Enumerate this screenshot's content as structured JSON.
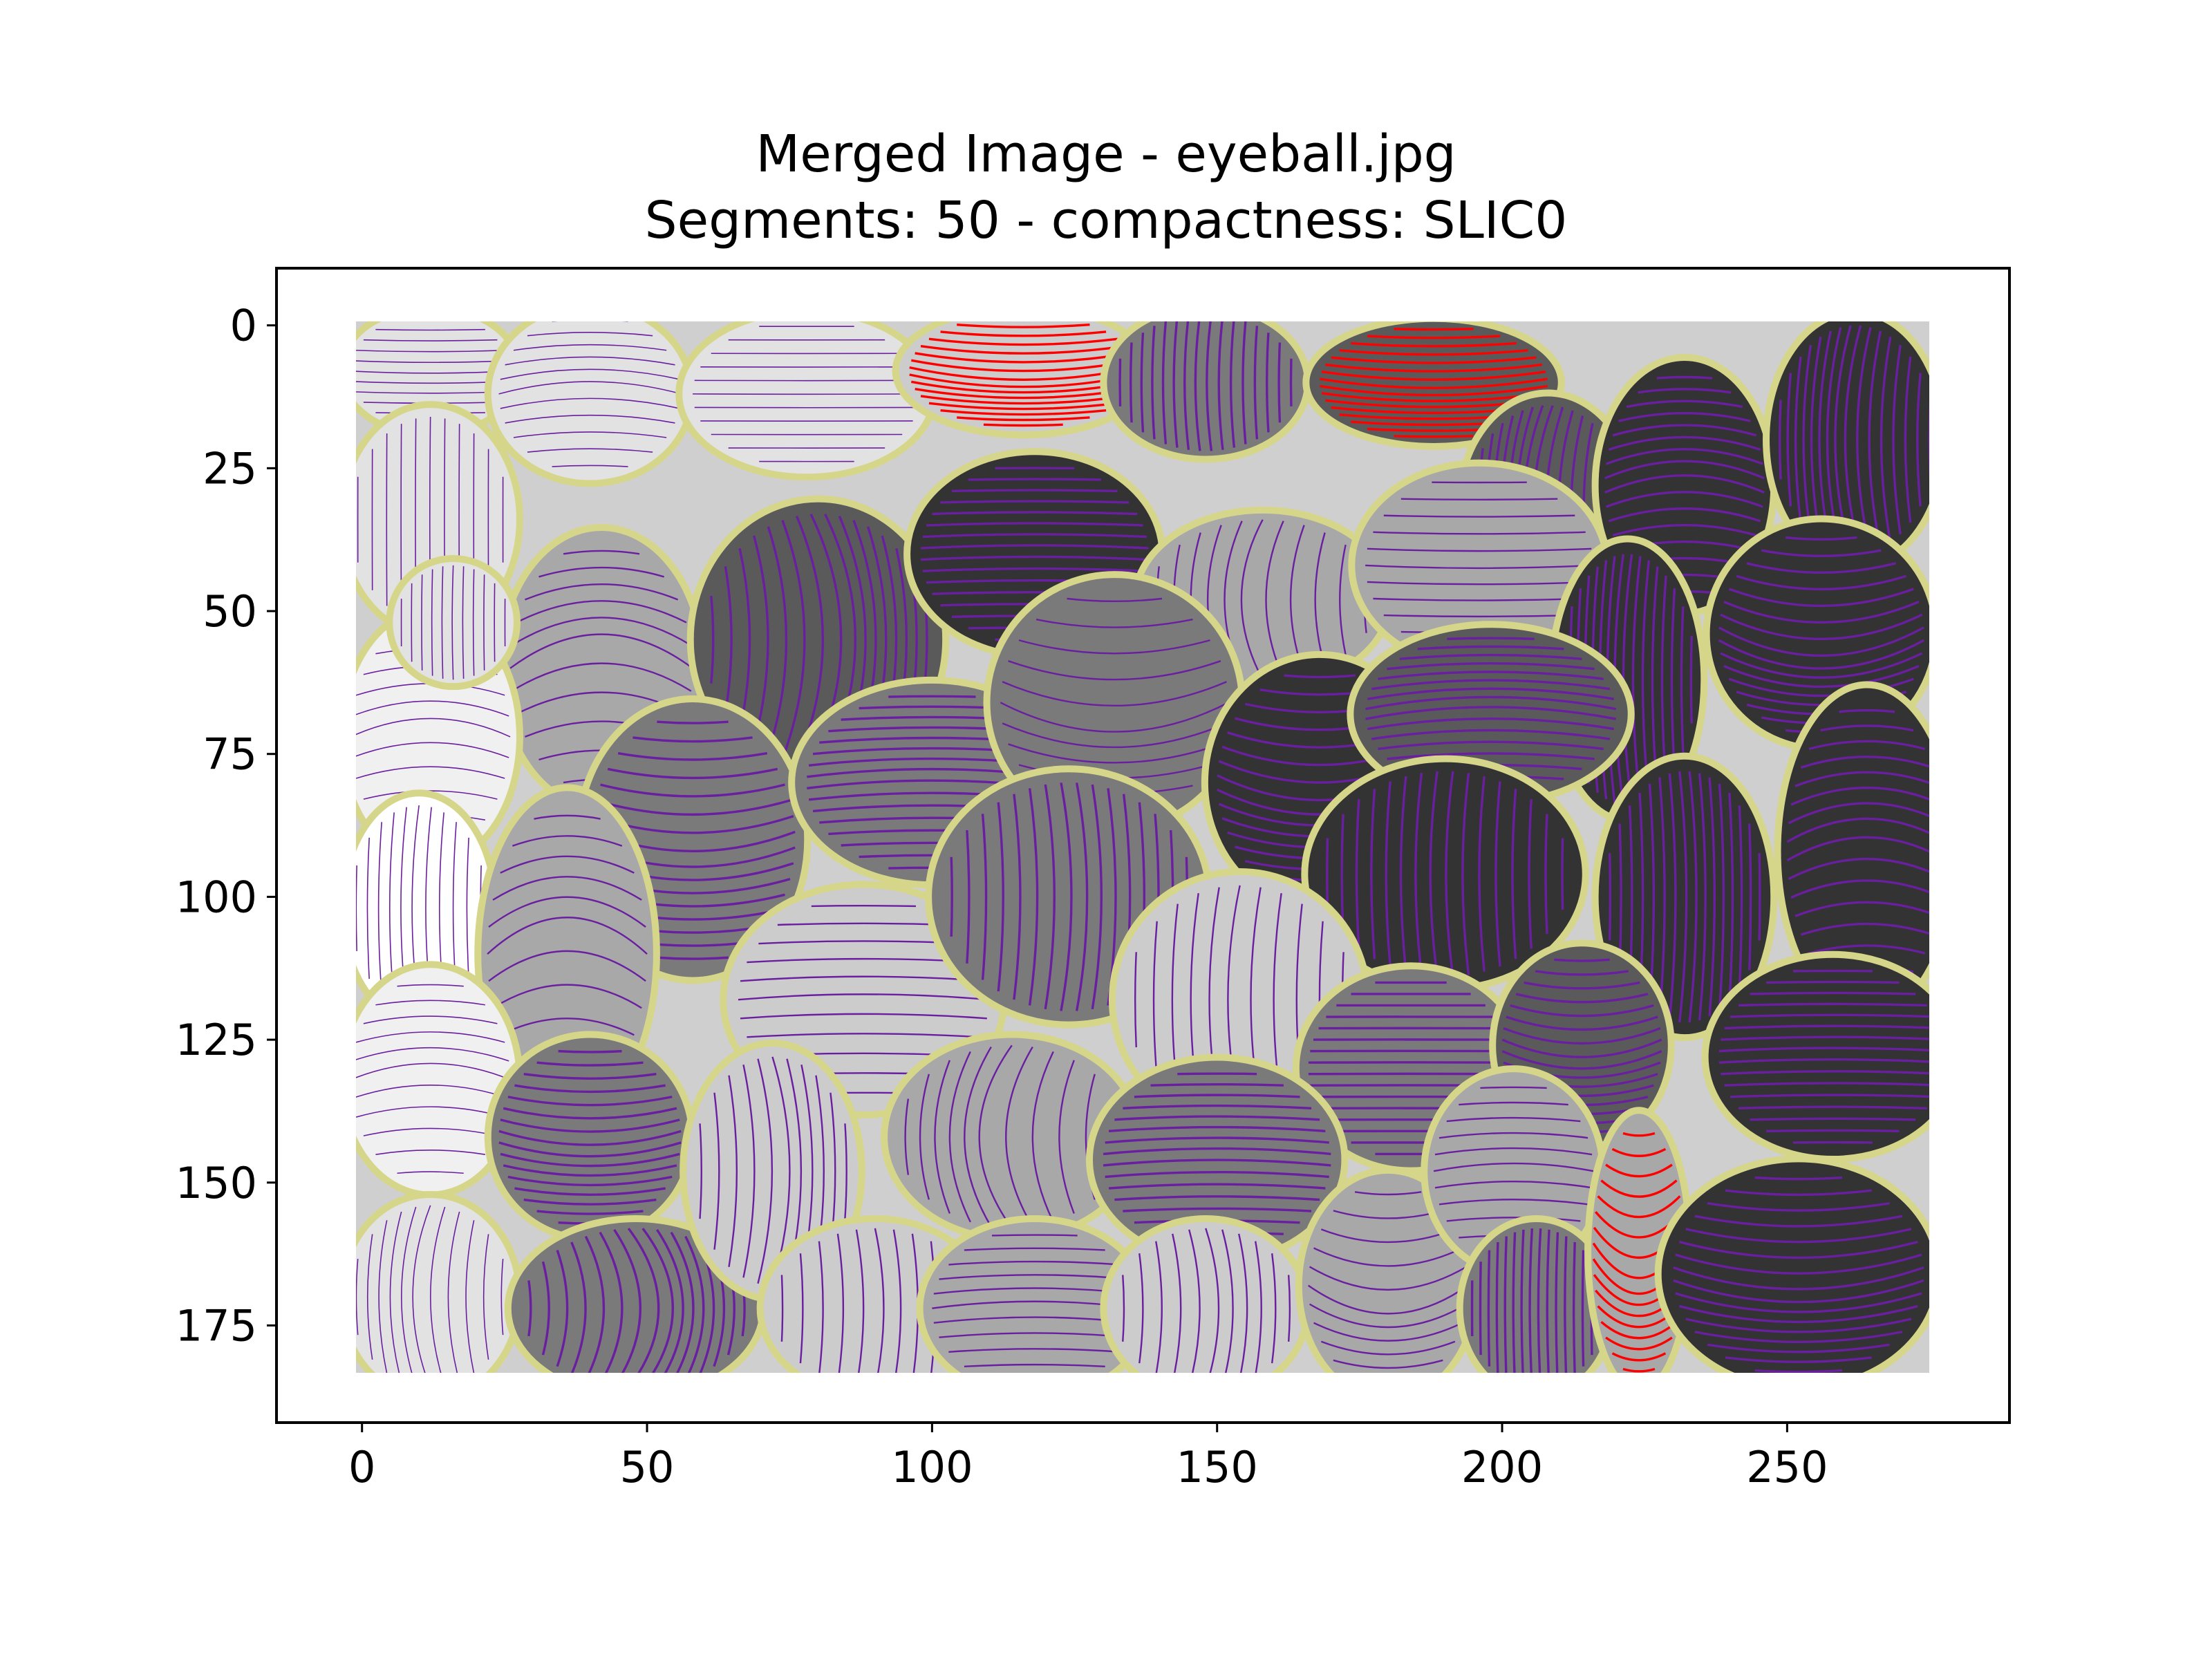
{
  "chart_data": {
    "type": "heatmap",
    "title": [
      "Merged Image - eyeball.jpg",
      "Segments: 50 - compactness: SLIC0"
    ],
    "xlabel": "",
    "ylabel": "",
    "xlim": [
      -15,
      289
    ],
    "ylim": [
      192,
      -10
    ],
    "x_ticks": [
      0,
      50,
      100,
      150,
      200,
      250
    ],
    "y_ticks": [
      0,
      25,
      50,
      75,
      100,
      125,
      150,
      175
    ],
    "image_extent": {
      "cols": 276,
      "rows": 184
    },
    "grid": false,
    "legend": "none",
    "segment_count": 50,
    "overlay": "streamlines per superpixel with yellow-green segment boundaries",
    "colors": {
      "boundary": "#d6d68a",
      "streamline_primary": "#6a1fa0",
      "streamline_highlight": "#ff0000",
      "gray_levels": [
        "#ffffff",
        "#f0f0f0",
        "#e2e2e2",
        "#cccccc",
        "#a8a8a8",
        "#7a7a7a",
        "#5a5a5a",
        "#333333"
      ]
    },
    "regions": [
      {
        "cx": 12,
        "cy": 8,
        "rx": 14,
        "ry": 10,
        "level": 2,
        "stream": "light"
      },
      {
        "cx": 40,
        "cy": 12,
        "rx": 16,
        "ry": 14,
        "level": 2,
        "stream": "light"
      },
      {
        "cx": 78,
        "cy": 12,
        "rx": 20,
        "ry": 13,
        "level": 2,
        "stream": "light"
      },
      {
        "cx": 116,
        "cy": 8,
        "rx": 20,
        "ry": 10,
        "level": 3,
        "stream": "red"
      },
      {
        "cx": 148,
        "cy": 10,
        "rx": 16,
        "ry": 12,
        "level": 5,
        "stream": "dark"
      },
      {
        "cx": 188,
        "cy": 10,
        "rx": 20,
        "ry": 10,
        "level": 6,
        "stream": "red"
      },
      {
        "cx": 208,
        "cy": 32,
        "rx": 14,
        "ry": 18,
        "level": 6,
        "stream": "dark"
      },
      {
        "cx": 232,
        "cy": 28,
        "rx": 14,
        "ry": 20,
        "level": 7,
        "stream": "dark"
      },
      {
        "cx": 262,
        "cy": 20,
        "rx": 14,
        "ry": 20,
        "level": 7,
        "stream": "dark"
      },
      {
        "cx": 12,
        "cy": 34,
        "rx": 14,
        "ry": 18,
        "level": 2,
        "stream": "light"
      },
      {
        "cx": 42,
        "cy": 60,
        "rx": 16,
        "ry": 22,
        "level": 4,
        "stream": "mid"
      },
      {
        "cx": 80,
        "cy": 55,
        "rx": 20,
        "ry": 22,
        "level": 6,
        "stream": "dark"
      },
      {
        "cx": 118,
        "cy": 40,
        "rx": 20,
        "ry": 16,
        "level": 7,
        "stream": "dark"
      },
      {
        "cx": 158,
        "cy": 48,
        "rx": 20,
        "ry": 14,
        "level": 4,
        "stream": "mid"
      },
      {
        "cx": 196,
        "cy": 42,
        "rx": 20,
        "ry": 16,
        "level": 4,
        "stream": "mid"
      },
      {
        "cx": 222,
        "cy": 62,
        "rx": 12,
        "ry": 22,
        "level": 7,
        "stream": "dark"
      },
      {
        "cx": 256,
        "cy": 54,
        "rx": 18,
        "ry": 18,
        "level": 7,
        "stream": "dark"
      },
      {
        "cx": 12,
        "cy": 72,
        "rx": 14,
        "ry": 20,
        "level": 1,
        "stream": "light"
      },
      {
        "cx": 10,
        "cy": 102,
        "rx": 12,
        "ry": 18,
        "level": 0,
        "stream": "light"
      },
      {
        "cx": 58,
        "cy": 90,
        "rx": 18,
        "ry": 22,
        "level": 5,
        "stream": "dark"
      },
      {
        "cx": 100,
        "cy": 80,
        "rx": 22,
        "ry": 16,
        "level": 5,
        "stream": "dark"
      },
      {
        "cx": 132,
        "cy": 66,
        "rx": 20,
        "ry": 20,
        "level": 5,
        "stream": "mid"
      },
      {
        "cx": 168,
        "cy": 80,
        "rx": 18,
        "ry": 20,
        "level": 7,
        "stream": "dark"
      },
      {
        "cx": 198,
        "cy": 68,
        "rx": 22,
        "ry": 14,
        "level": 6,
        "stream": "dark"
      },
      {
        "cx": 190,
        "cy": 96,
        "rx": 22,
        "ry": 18,
        "level": 7,
        "stream": "dark"
      },
      {
        "cx": 232,
        "cy": 100,
        "rx": 14,
        "ry": 22,
        "level": 7,
        "stream": "dark"
      },
      {
        "cx": 264,
        "cy": 92,
        "rx": 14,
        "ry": 26,
        "level": 7,
        "stream": "dark"
      },
      {
        "cx": 36,
        "cy": 110,
        "rx": 14,
        "ry": 26,
        "level": 4,
        "stream": "mid"
      },
      {
        "cx": 88,
        "cy": 118,
        "rx": 22,
        "ry": 18,
        "level": 3,
        "stream": "mid"
      },
      {
        "cx": 124,
        "cy": 100,
        "rx": 22,
        "ry": 20,
        "level": 5,
        "stream": "dark"
      },
      {
        "cx": 154,
        "cy": 118,
        "rx": 20,
        "ry": 20,
        "level": 3,
        "stream": "mid"
      },
      {
        "cx": 184,
        "cy": 130,
        "rx": 18,
        "ry": 16,
        "level": 5,
        "stream": "dark"
      },
      {
        "cx": 214,
        "cy": 126,
        "rx": 14,
        "ry": 16,
        "level": 6,
        "stream": "dark"
      },
      {
        "cx": 258,
        "cy": 128,
        "rx": 20,
        "ry": 16,
        "level": 7,
        "stream": "dark"
      },
      {
        "cx": 12,
        "cy": 132,
        "rx": 14,
        "ry": 18,
        "level": 1,
        "stream": "light"
      },
      {
        "cx": 12,
        "cy": 170,
        "rx": 14,
        "ry": 16,
        "level": 2,
        "stream": "light"
      },
      {
        "cx": 40,
        "cy": 142,
        "rx": 16,
        "ry": 16,
        "level": 5,
        "stream": "dark"
      },
      {
        "cx": 48,
        "cy": 172,
        "rx": 20,
        "ry": 14,
        "level": 5,
        "stream": "dark"
      },
      {
        "cx": 72,
        "cy": 148,
        "rx": 14,
        "ry": 20,
        "level": 3,
        "stream": "mid"
      },
      {
        "cx": 90,
        "cy": 172,
        "rx": 18,
        "ry": 14,
        "level": 3,
        "stream": "mid"
      },
      {
        "cx": 114,
        "cy": 142,
        "rx": 20,
        "ry": 16,
        "level": 4,
        "stream": "mid"
      },
      {
        "cx": 118,
        "cy": 172,
        "rx": 18,
        "ry": 14,
        "level": 4,
        "stream": "mid"
      },
      {
        "cx": 150,
        "cy": 146,
        "rx": 20,
        "ry": 16,
        "level": 5,
        "stream": "dark"
      },
      {
        "cx": 148,
        "cy": 172,
        "rx": 16,
        "ry": 14,
        "level": 3,
        "stream": "mid"
      },
      {
        "cx": 180,
        "cy": 168,
        "rx": 14,
        "ry": 18,
        "level": 4,
        "stream": "mid"
      },
      {
        "cx": 202,
        "cy": 148,
        "rx": 14,
        "ry": 16,
        "level": 4,
        "stream": "mid"
      },
      {
        "cx": 206,
        "cy": 172,
        "rx": 12,
        "ry": 14,
        "level": 5,
        "stream": "dark"
      },
      {
        "cx": 224,
        "cy": 162,
        "rx": 8,
        "ry": 22,
        "level": 4,
        "stream": "red"
      },
      {
        "cx": 252,
        "cy": 166,
        "rx": 22,
        "ry": 18,
        "level": 7,
        "stream": "dark"
      },
      {
        "cx": 16,
        "cy": 52,
        "rx": 10,
        "ry": 10,
        "level": 2,
        "stream": "light"
      }
    ]
  }
}
